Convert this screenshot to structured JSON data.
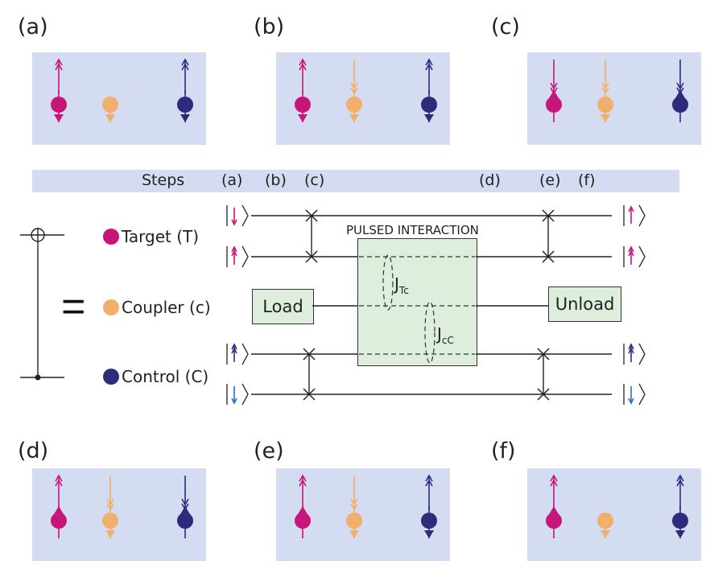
{
  "panels": [
    {
      "label": "(a)"
    },
    {
      "label": "(b)"
    },
    {
      "label": "(c)"
    },
    {
      "label": "(d)"
    },
    {
      "label": "(e)"
    },
    {
      "label": "(f)"
    }
  ],
  "steps": {
    "title": "Steps",
    "labels": [
      "(a)",
      "(b)",
      "(c)",
      "(d)",
      "(e)",
      "(f)"
    ]
  },
  "legend": {
    "target": "Target (T)",
    "coupler": "Coupler (c)",
    "control": "Control (C)"
  },
  "circuit": {
    "equals": "=",
    "load": "Load",
    "unload": "Unload",
    "pulsed": "PULSED INTERACTION",
    "j_tc_main": "J",
    "j_tc_sub": "Tc",
    "j_cc_main": "J",
    "j_cc_sub": "cC"
  },
  "colors": {
    "target": "#c8157a",
    "coupler": "#f2ae6c",
    "control": "#2e2a7c",
    "panel_bg": "#d3dcf0",
    "box_bg": "#ddeedd"
  }
}
